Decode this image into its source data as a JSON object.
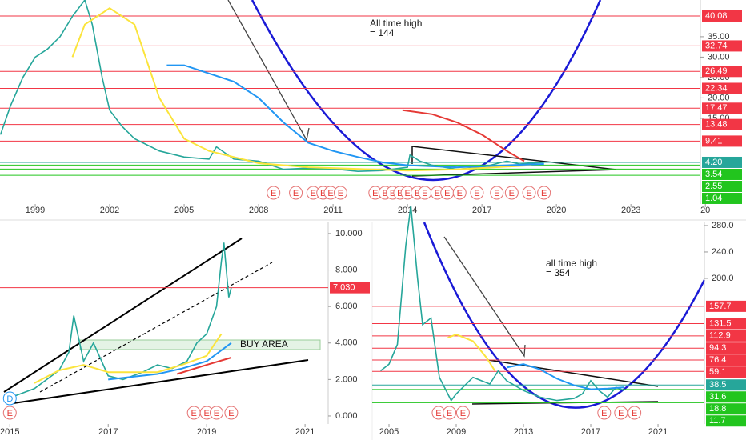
{
  "chart_data": [
    {
      "type": "line",
      "annotation": [
        "All time high",
        "= 144"
      ],
      "xlim": [
        1997.58,
        2025.8
      ],
      "ylim": [
        -6.0,
        44.0
      ],
      "xticks": [
        1999,
        2002,
        2005,
        2008,
        2011,
        2014,
        2017,
        2020,
        2023,
        {
          "value": 2026,
          "label": "20"
        }
      ],
      "yticks": [
        {
          "value": 35,
          "label": "35.00"
        },
        {
          "value": 30,
          "label": "30.00"
        },
        {
          "value": 25,
          "label": "25.00"
        },
        {
          "value": 20,
          "label": "20.00"
        },
        {
          "value": 15,
          "label": "15.00"
        }
      ],
      "levels": [
        {
          "value": 40.08,
          "color": "#f23645"
        },
        {
          "value": 32.74,
          "color": "#f23645"
        },
        {
          "value": 26.49,
          "color": "#f23645"
        },
        {
          "value": 22.34,
          "color": "#f23645"
        },
        {
          "value": 17.47,
          "color": "#f23645"
        },
        {
          "value": 13.48,
          "color": "#f23645"
        },
        {
          "value": 9.41,
          "color": "#f23645"
        },
        {
          "value": 4.2,
          "label": "4.20",
          "color": "#26a69a"
        },
        {
          "value": 3.54,
          "color": "#22c51e"
        },
        {
          "value": 2.55,
          "color": "#22c51e"
        },
        {
          "value": 1.04,
          "color": "#22c51e"
        }
      ],
      "earnings": {
        "label": "E",
        "x": [
          2008.6,
          2009.5,
          2010.2,
          2010.6,
          2010.9,
          2011.3,
          2012.7,
          2013.1,
          2013.4,
          2013.7,
          2014.0,
          2014.4,
          2014.7,
          2015.2,
          2015.6,
          2016.1,
          2016.8,
          2017.6,
          2018.2,
          2018.9,
          2019.5
        ]
      },
      "series": [
        {
          "color": "#26a69a",
          "x": [
            1997.6,
            1998,
            1998.5,
            1999,
            1999.5,
            2000,
            2000.5,
            2001,
            2001.3,
            2001.7,
            2002,
            2002.5,
            2003,
            2004,
            2005,
            2006,
            2006.3,
            2007,
            2008,
            2009,
            2010,
            2011,
            2012,
            2013,
            2014,
            2014.1,
            2014.5,
            2015,
            2016,
            2017,
            2018,
            2018.5,
            2019,
            2019.5
          ],
          "values": [
            11,
            18,
            25,
            30,
            32,
            35,
            40,
            44,
            38,
            25,
            17,
            13,
            10,
            7,
            5.5,
            5,
            8,
            5,
            4.5,
            2.5,
            2.8,
            2.6,
            2,
            2.2,
            3,
            6,
            4.5,
            3.5,
            2.5,
            3,
            4.5,
            3.8,
            4,
            4.2
          ]
        },
        {
          "color": "#fbe43c",
          "x": [
            2000.5,
            2001,
            2002,
            2003,
            2004,
            2005,
            2006,
            2008,
            2010,
            2014,
            2016,
            2019
          ],
          "values": [
            30,
            38,
            42,
            38,
            20,
            10,
            7,
            4,
            3,
            2.2,
            2.5,
            3.5
          ]
        },
        {
          "color": "#2196f3",
          "x": [
            2004.3,
            2005,
            2006,
            2007,
            2008,
            2009,
            2010,
            2011,
            2012,
            2013,
            2014,
            2016,
            2018,
            2019.5
          ],
          "values": [
            28,
            28,
            26,
            24,
            20,
            14,
            9,
            7,
            5.5,
            4.2,
            3.5,
            3,
            3.5,
            3.8
          ]
        },
        {
          "color": "#e53935",
          "x": [
            2013.8,
            2015,
            2016,
            2017,
            2018,
            2018.7
          ],
          "values": [
            17,
            16,
            14,
            11,
            7,
            4.5
          ]
        }
      ]
    },
    {
      "type": "line",
      "annotation": [
        "BUY AREA"
      ],
      "xlim": [
        2014.8,
        2021.47
      ],
      "ylim": [
        -0.44,
        10.61
      ],
      "xticks": [
        2015,
        2017,
        2019,
        2021
      ],
      "yticks": [
        {
          "value": 10,
          "label": "10.000"
        },
        {
          "value": 8,
          "label": "8.000"
        },
        {
          "value": 6,
          "label": "6.000"
        },
        {
          "value": 4,
          "label": "4.000"
        },
        {
          "value": 2,
          "label": "2.000"
        },
        {
          "value": 0,
          "label": "0.000"
        }
      ],
      "levels": [
        {
          "value": 7.03,
          "label": "7.030",
          "color": "#f23645"
        }
      ],
      "dividend": {
        "label": "D",
        "x": 2015
      },
      "earnings": {
        "label": "E",
        "x": [
          2015,
          2018.74,
          2019.0,
          2019.2,
          2019.5
        ]
      },
      "series": [
        {
          "color": "#26a69a",
          "x": [
            2015,
            2015.5,
            2016,
            2016.2,
            2016.3,
            2016.5,
            2016.7,
            2017,
            2017.3,
            2017.7,
            2018,
            2018.3,
            2018.6,
            2018.8,
            2019,
            2019.2,
            2019.3,
            2019.35,
            2019.45,
            2019.5
          ],
          "values": [
            1.0,
            1.5,
            2.5,
            3.5,
            5.5,
            3.0,
            4.0,
            2.2,
            2.0,
            2.4,
            2.8,
            2.6,
            3.0,
            4.0,
            4.5,
            6.0,
            8.5,
            9.5,
            6.5,
            7.03
          ]
        },
        {
          "color": "#fbe43c",
          "x": [
            2015.5,
            2016,
            2016.5,
            2017,
            2018,
            2018.5,
            2019,
            2019.3
          ],
          "values": [
            1.8,
            2.5,
            2.8,
            2.4,
            2.4,
            2.8,
            3.3,
            4.5
          ]
        },
        {
          "color": "#2196f3",
          "x": [
            2017,
            2018,
            2018.5,
            2019,
            2019.5
          ],
          "values": [
            2.0,
            2.3,
            2.6,
            3.0,
            4.0
          ]
        },
        {
          "color": "#e53935",
          "x": [
            2018.4,
            2019,
            2019.5
          ],
          "values": [
            2.3,
            2.8,
            3.2
          ]
        }
      ]
    },
    {
      "type": "line",
      "annotation": [
        "all time high",
        "= 354"
      ],
      "xlim": [
        2004.0,
        2023.76
      ],
      "ylim": [
        -20.6,
        284.8
      ],
      "xticks": [
        2005,
        2009,
        2013,
        2017,
        2021
      ],
      "yticks": [
        {
          "value": 280,
          "label": "280.0"
        },
        {
          "value": 240,
          "label": "240.0"
        },
        {
          "value": 200,
          "label": "200.0"
        }
      ],
      "levels": [
        {
          "value": 157.7,
          "color": "#f23645"
        },
        {
          "value": 131.5,
          "color": "#f23645"
        },
        {
          "value": 112.9,
          "color": "#f23645"
        },
        {
          "value": 94.3,
          "color": "#f23645"
        },
        {
          "value": 76.4,
          "color": "#f23645"
        },
        {
          "value": 59.1,
          "color": "#f23645"
        },
        {
          "value": 38.5,
          "color": "#26a69a"
        },
        {
          "value": 31.6,
          "color": "#22c51e"
        },
        {
          "value": 18.8,
          "color": "#22c51e"
        },
        {
          "value": 11.7,
          "color": "#22c51e"
        }
      ],
      "earnings": {
        "label": "E",
        "x": [
          2007.95,
          2008.6,
          2009.4,
          2017.8,
          2018.8,
          2019.6
        ]
      },
      "series": [
        {
          "color": "#26a69a",
          "x": [
            2004.5,
            2005,
            2005.5,
            2006,
            2006.3,
            2006.7,
            2007,
            2007.5,
            2008,
            2008.7,
            2009,
            2010,
            2011,
            2011.5,
            2012,
            2013,
            2014,
            2015,
            2016,
            2016.5,
            2017,
            2017.5,
            2018,
            2018.5,
            2019
          ],
          "values": [
            60,
            70,
            100,
            250,
            310,
            200,
            130,
            140,
            50,
            15,
            25,
            50,
            40,
            60,
            45,
            30,
            20,
            15,
            18,
            25,
            45,
            30,
            20,
            35,
            30
          ]
        },
        {
          "color": "#fbe43c",
          "x": [
            2008.5,
            2009,
            2010,
            2010.8,
            2011.3
          ],
          "values": [
            110,
            115,
            105,
            80,
            60
          ]
        },
        {
          "color": "#2196f3",
          "x": [
            2012,
            2013,
            2014,
            2015,
            2016,
            2017,
            2018,
            2019
          ],
          "values": [
            65,
            70,
            62,
            48,
            38,
            32,
            33,
            35
          ]
        }
      ]
    }
  ]
}
